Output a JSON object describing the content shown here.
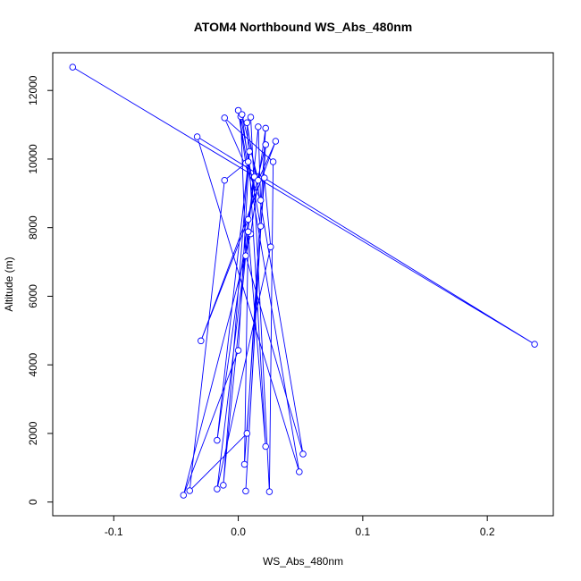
{
  "chart_data": {
    "type": "line",
    "title": "ATOM4 Northbound WS_Abs_480nm",
    "xlabel": "WS_Abs_480nm",
    "ylabel": "Altitude (m)",
    "xlim": [
      -0.149,
      0.253
    ],
    "ylim": [
      -400,
      13100
    ],
    "x_ticks": [
      -0.1,
      0.0,
      0.1,
      0.2
    ],
    "x_tick_labels": [
      "-0.1",
      "0.0",
      "0.1",
      "0.2"
    ],
    "y_ticks": [
      0,
      2000,
      4000,
      6000,
      8000,
      10000,
      12000
    ],
    "y_tick_labels": [
      "0",
      "2000",
      "4000",
      "6000",
      "8000",
      "10000",
      "12000"
    ],
    "grid": false,
    "legend": "none",
    "series_color": "#0000ff",
    "points": [
      {
        "x": -0.133,
        "y": 12680
      },
      {
        "x": 0.238,
        "y": 4600
      },
      {
        "x": -0.033,
        "y": 10650
      },
      {
        "x": 0.049,
        "y": 880
      },
      {
        "x": 0.0,
        "y": 11420
      },
      {
        "x": 0.006,
        "y": 9880
      },
      {
        "x": -0.011,
        "y": 9380
      },
      {
        "x": -0.039,
        "y": 330
      },
      {
        "x": 0.007,
        "y": 2000
      },
      {
        "x": 0.022,
        "y": 10900
      },
      {
        "x": 0.01,
        "y": 7820
      },
      {
        "x": -0.044,
        "y": 200
      },
      {
        "x": 0.0,
        "y": 4420
      },
      {
        "x": 0.009,
        "y": 10220
      },
      {
        "x": -0.017,
        "y": 1800
      },
      {
        "x": 0.013,
        "y": 9480
      },
      {
        "x": -0.017,
        "y": 380
      },
      {
        "x": 0.026,
        "y": 7440
      },
      {
        "x": 0.021,
        "y": 9450
      },
      {
        "x": 0.005,
        "y": 1100
      },
      {
        "x": 0.008,
        "y": 7880
      },
      {
        "x": 0.022,
        "y": 1620
      },
      {
        "x": 0.007,
        "y": 11060
      },
      {
        "x": 0.052,
        "y": 1400
      },
      {
        "x": 0.006,
        "y": 7180
      },
      {
        "x": 0.002,
        "y": 11240
      },
      {
        "x": 0.018,
        "y": 8040
      },
      {
        "x": 0.006,
        "y": 320
      },
      {
        "x": 0.022,
        "y": 10420
      },
      {
        "x": 0.008,
        "y": 8240
      },
      {
        "x": -0.03,
        "y": 4700
      },
      {
        "x": 0.03,
        "y": 10520
      },
      {
        "x": 0.016,
        "y": 9380
      },
      {
        "x": 0.003,
        "y": 11300
      },
      {
        "x": 0.008,
        "y": 9920
      },
      {
        "x": -0.012,
        "y": 490
      },
      {
        "x": 0.016,
        "y": 10940
      },
      {
        "x": 0.018,
        "y": 8800
      },
      {
        "x": -0.011,
        "y": 11200
      },
      {
        "x": 0.028,
        "y": 9920
      },
      {
        "x": 0.025,
        "y": 300
      },
      {
        "x": 0.01,
        "y": 11220
      }
    ]
  }
}
